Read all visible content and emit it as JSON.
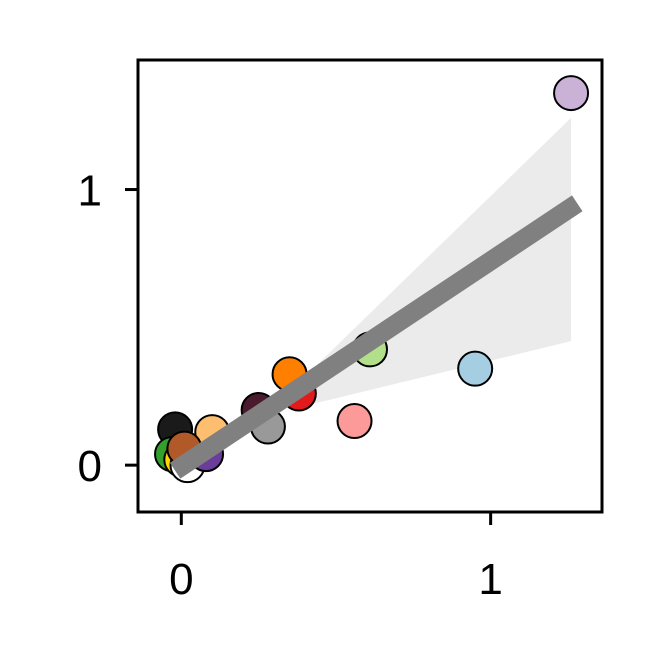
{
  "chart_data": {
    "type": "scatter",
    "title": "",
    "xlabel": "",
    "ylabel": "",
    "xlim": [
      -0.14,
      1.36
    ],
    "ylim": [
      -0.17,
      1.47
    ],
    "x_ticks": [
      {
        "value": 0,
        "label": "0"
      },
      {
        "value": 1,
        "label": "1"
      }
    ],
    "y_ticks": [
      {
        "value": 0,
        "label": "0"
      },
      {
        "value": 1,
        "label": "1"
      }
    ],
    "grid": false,
    "legend": "none",
    "points": [
      {
        "x": -0.02,
        "y": 0.13,
        "color": "#1a1a1a"
      },
      {
        "x": -0.03,
        "y": 0.04,
        "color": "#33a02c"
      },
      {
        "x": 0.0,
        "y": 0.02,
        "color": "#ffd700"
      },
      {
        "x": 0.02,
        "y": 0.0,
        "color": "#ffffff"
      },
      {
        "x": 0.08,
        "y": 0.04,
        "color": "#6a3d9a"
      },
      {
        "x": 0.1,
        "y": 0.12,
        "color": "#fdbf6f"
      },
      {
        "x": 0.01,
        "y": 0.06,
        "color": "#b15928"
      },
      {
        "x": 0.25,
        "y": 0.2,
        "color": "#4a1a2e"
      },
      {
        "x": 0.28,
        "y": 0.14,
        "color": "#999999"
      },
      {
        "x": 0.38,
        "y": 0.26,
        "color": "#e31a1c"
      },
      {
        "x": 0.35,
        "y": 0.33,
        "color": "#ff7f00"
      },
      {
        "x": 0.61,
        "y": 0.42,
        "color": "#b2df8a"
      },
      {
        "x": 0.56,
        "y": 0.16,
        "color": "#fb9a99"
      },
      {
        "x": 0.95,
        "y": 0.35,
        "color": "#a6cee3"
      },
      {
        "x": 1.26,
        "y": 1.35,
        "color": "#cab2d6"
      }
    ],
    "regression": {
      "x0": -0.02,
      "y0": -0.02,
      "x1": 1.28,
      "y1": 0.95,
      "color": "#808080"
    },
    "confidence_band": [
      [
        0.38,
        0.3
      ],
      [
        1.26,
        1.26
      ],
      [
        1.26,
        0.45
      ],
      [
        0.38,
        0.21
      ]
    ],
    "band_color": "#ebebeb"
  }
}
